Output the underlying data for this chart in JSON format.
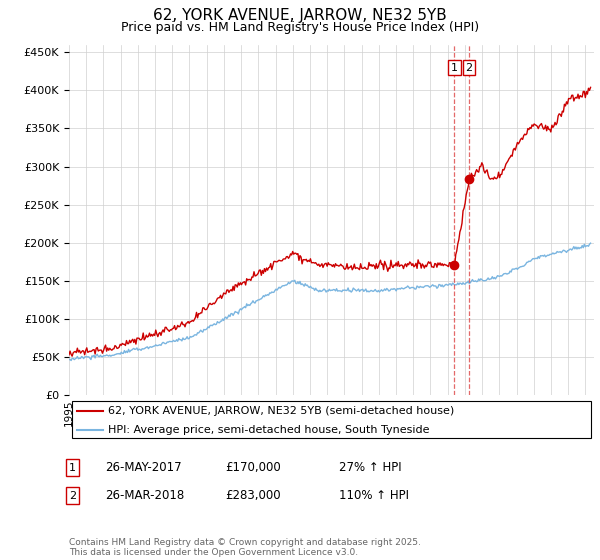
{
  "title": "62, YORK AVENUE, JARROW, NE32 5YB",
  "subtitle": "Price paid vs. HM Land Registry's House Price Index (HPI)",
  "ylim": [
    0,
    460000
  ],
  "xlim_start": 1995.0,
  "xlim_end": 2025.5,
  "legend_line1": "62, YORK AVENUE, JARROW, NE32 5YB (semi-detached house)",
  "legend_line2": "HPI: Average price, semi-detached house, South Tyneside",
  "event1_date": "26-MAY-2017",
  "event1_price": "£170,000",
  "event1_pct": "27% ↑ HPI",
  "event2_date": "26-MAR-2018",
  "event2_price": "£283,000",
  "event2_pct": "110% ↑ HPI",
  "vline1_x": 2017.39,
  "vline2_x": 2018.23,
  "marker1_y": 170000,
  "marker2_y": 283000,
  "footer": "Contains HM Land Registry data © Crown copyright and database right 2025.\nThis data is licensed under the Open Government Licence v3.0.",
  "hpi_color": "#7ab5e0",
  "price_color": "#cc0000",
  "bg_color": "#ffffff",
  "grid_color": "#d0d0d0",
  "vline_color": "#dd4444"
}
